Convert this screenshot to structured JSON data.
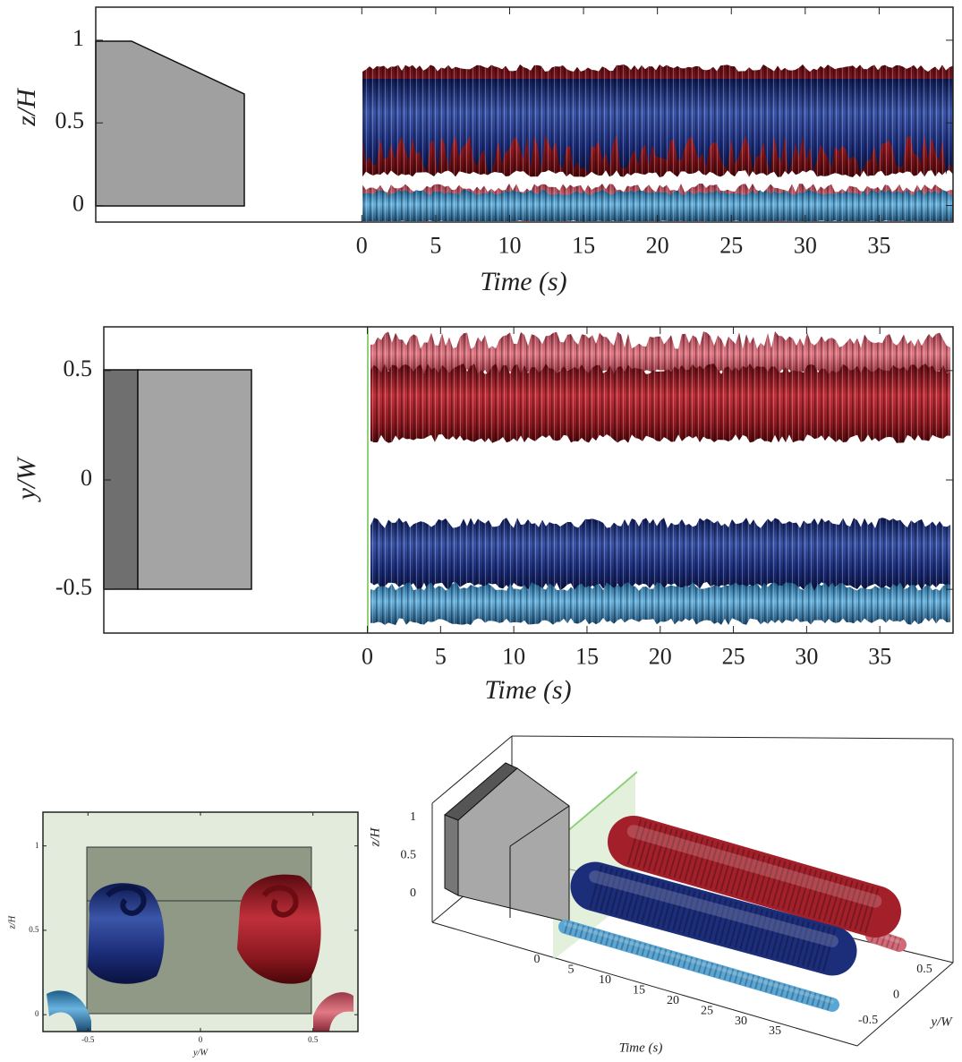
{
  "panels": [
    {
      "ylabel": "z/H",
      "xlabel": "Time (s)",
      "xlim": [
        -18,
        40
      ],
      "ylim": [
        -0.1,
        1.2
      ],
      "xticks": [
        0,
        5,
        10,
        15,
        20,
        25,
        30,
        35
      ],
      "yticks": [
        0,
        0.5,
        1
      ]
    },
    {
      "ylabel": "y/W",
      "xlabel": "Time (s)",
      "xlim": [
        -18,
        40
      ],
      "ylim": [
        -0.7,
        0.7
      ],
      "xticks": [
        0,
        5,
        10,
        15,
        20,
        25,
        30,
        35
      ],
      "yticks": [
        -0.5,
        0,
        0.5
      ]
    },
    {
      "ylabel": "z/H",
      "xlabel": "y/W",
      "xlim": [
        -0.7,
        0.7
      ],
      "ylim": [
        -0.1,
        1.2
      ],
      "xticks": [
        -0.5,
        0,
        0.5
      ],
      "yticks": [
        0,
        0.5,
        1
      ]
    },
    {
      "zlabel": "z/H",
      "xlabel": "Time (s)",
      "ylabel": "y/W",
      "zticks": [
        0,
        0.5,
        1
      ],
      "xticks": [
        0,
        5,
        10,
        15,
        20,
        25,
        30,
        35
      ],
      "yticks": [
        -0.5,
        0,
        0.5
      ]
    }
  ]
}
